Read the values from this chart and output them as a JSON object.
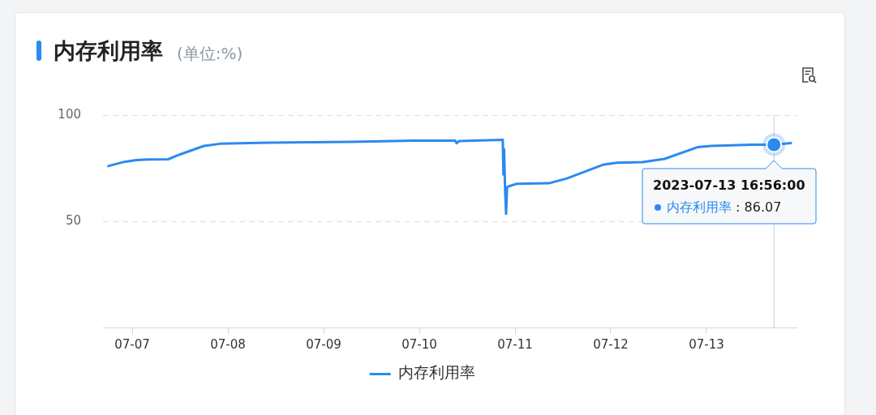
{
  "chart_data": {
    "type": "line",
    "title": "内存利用率",
    "subtitle": "(单位:%)",
    "x": [
      "2023-07-06T18:00",
      "2023-07-06T22:00",
      "2023-07-07T01:00",
      "2023-07-07T04:00",
      "2023-07-07T09:00",
      "2023-07-07T12:00",
      "2023-07-07T18:00",
      "2023-07-07T22:00",
      "2023-07-08T10:30",
      "2023-07-09T07:00",
      "2023-07-10T00:00",
      "2023-07-10T09:00",
      "2023-07-10T09:20",
      "2023-07-10T10:00",
      "2023-07-10T20:55",
      "2023-07-10T21:05",
      "2023-07-10T21:15",
      "2023-07-10T21:30",
      "2023-07-10T21:45",
      "2023-07-10T22:00",
      "2023-07-10T22:30",
      "2023-07-11T00:30",
      "2023-07-11T08:30",
      "2023-07-11T13:00",
      "2023-07-11T22:00",
      "2023-07-12T01:30",
      "2023-07-12T08:00",
      "2023-07-12T13:30",
      "2023-07-12T21:45",
      "2023-07-13T01:15",
      "2023-07-13T11:30",
      "2023-07-13T16:56",
      "2023-07-13T21:10"
    ],
    "series": [
      {
        "name": "内存利用率",
        "color": "#2b8af0",
        "values": [
          76.0,
          78.0,
          78.8,
          79.1,
          79.2,
          81.5,
          85.5,
          86.5,
          87.0,
          87.4,
          88.0,
          88.0,
          86.8,
          87.8,
          88.4,
          72.0,
          84.0,
          65.0,
          53.5,
          66.0,
          66.5,
          67.7,
          67.9,
          70.2,
          76.6,
          77.6,
          77.9,
          79.4,
          84.9,
          85.5,
          86.1,
          86.07,
          86.8
        ]
      }
    ],
    "xlim": [
      "2023-07-06T16:40",
      "2023-07-13T22:35"
    ],
    "xticks": [
      {
        "value": "2023-07-07",
        "label": "07-07"
      },
      {
        "value": "2023-07-08",
        "label": "07-08"
      },
      {
        "value": "2023-07-09",
        "label": "07-09"
      },
      {
        "value": "2023-07-10",
        "label": "07-10"
      },
      {
        "value": "2023-07-11",
        "label": "07-11"
      },
      {
        "value": "2023-07-12",
        "label": "07-12"
      },
      {
        "value": "2023-07-13",
        "label": "07-13"
      }
    ],
    "ylim": [
      0,
      100
    ],
    "yticks": [
      50,
      100
    ],
    "grid": "y",
    "legend": "bottom",
    "marker": "none",
    "line_style": "solid",
    "ref_lines": [
      {
        "axis": "x",
        "value": "2023-07-13T16:56",
        "color": "#c9ccd6"
      }
    ],
    "annotations": [
      {
        "text": "2023-07-13 16:56:00\n内存利用率 : 86.07",
        "x": "2023-07-13T16:56",
        "y": 86.07
      }
    ]
  }
}
